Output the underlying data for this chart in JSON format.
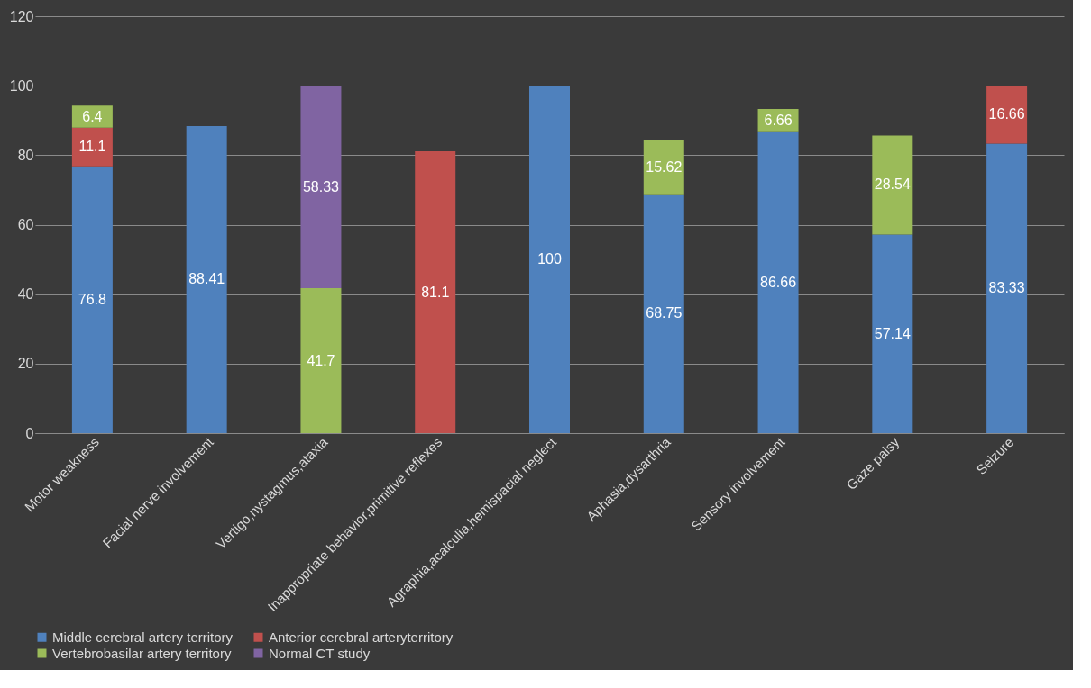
{
  "chart_data": {
    "type": "bar",
    "stacked": true,
    "categories": [
      "Motor weakness",
      "Facial nerve involvement",
      "Vertigo,nystagmus,ataxia",
      "Inappropriate behavior,primitive reflexes",
      "Agraphia,acalculia,hemispacial neglect",
      "Aphasia,dysarthria",
      "Sensory involvement",
      "Gaze palsy",
      "Seizure"
    ],
    "series": [
      {
        "name": "Middle cerebral artery territory",
        "color": "#4f81bd",
        "values": [
          76.8,
          88.41,
          null,
          null,
          100,
          68.75,
          86.66,
          57.14,
          83.33
        ]
      },
      {
        "name": "Anterior cerebral arteryterritory",
        "color": "#c0504d",
        "values": [
          11.1,
          null,
          null,
          81.1,
          null,
          null,
          null,
          null,
          16.66
        ]
      },
      {
        "name": "Vertebrobasilar artery territory",
        "color": "#9bbb59",
        "values": [
          6.4,
          null,
          41.7,
          null,
          null,
          15.62,
          6.66,
          28.54,
          null
        ]
      },
      {
        "name": "Normal CT study",
        "color": "#8064a2",
        "values": [
          null,
          null,
          58.33,
          null,
          null,
          null,
          null,
          null,
          null
        ]
      }
    ],
    "ylim": [
      0,
      120
    ],
    "yticks": [
      0,
      20,
      40,
      60,
      80,
      100,
      120
    ],
    "grid": "y",
    "legend": "bottom",
    "data_labels": true
  }
}
